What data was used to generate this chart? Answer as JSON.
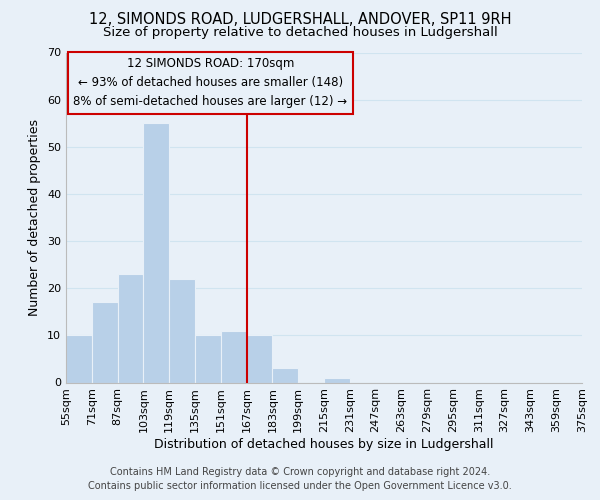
{
  "title": "12, SIMONDS ROAD, LUDGERSHALL, ANDOVER, SP11 9RH",
  "subtitle": "Size of property relative to detached houses in Ludgershall",
  "xlabel": "Distribution of detached houses by size in Ludgershall",
  "ylabel": "Number of detached properties",
  "footer_line1": "Contains HM Land Registry data © Crown copyright and database right 2024.",
  "footer_line2": "Contains public sector information licensed under the Open Government Licence v3.0.",
  "bin_edges": [
    55,
    71,
    87,
    103,
    119,
    135,
    151,
    167,
    183,
    199,
    215,
    231,
    247,
    263,
    279,
    295,
    311,
    327,
    343,
    359,
    375
  ],
  "bin_labels": [
    "55sqm",
    "71sqm",
    "87sqm",
    "103sqm",
    "119sqm",
    "135sqm",
    "151sqm",
    "167sqm",
    "183sqm",
    "199sqm",
    "215sqm",
    "231sqm",
    "247sqm",
    "263sqm",
    "279sqm",
    "295sqm",
    "311sqm",
    "327sqm",
    "343sqm",
    "359sqm",
    "375sqm"
  ],
  "counts": [
    10,
    17,
    23,
    55,
    22,
    10,
    11,
    10,
    3,
    0,
    1,
    0,
    0,
    0,
    0,
    0,
    0,
    0,
    0,
    0
  ],
  "bar_color": "#b8d0e8",
  "grid_color": "#d0e4f0",
  "background_color": "#e8f0f8",
  "vline_x": 167,
  "vline_color": "#cc0000",
  "annotation_text": "12 SIMONDS ROAD: 170sqm\n← 93% of detached houses are smaller (148)\n8% of semi-detached houses are larger (12) →",
  "annotation_box_color": "#cc0000",
  "ylim": [
    0,
    70
  ],
  "yticks": [
    0,
    10,
    20,
    30,
    40,
    50,
    60,
    70
  ],
  "title_fontsize": 10.5,
  "subtitle_fontsize": 9.5,
  "axis_label_fontsize": 9,
  "tick_fontsize": 8,
  "annotation_fontsize": 8.5,
  "footer_fontsize": 7
}
